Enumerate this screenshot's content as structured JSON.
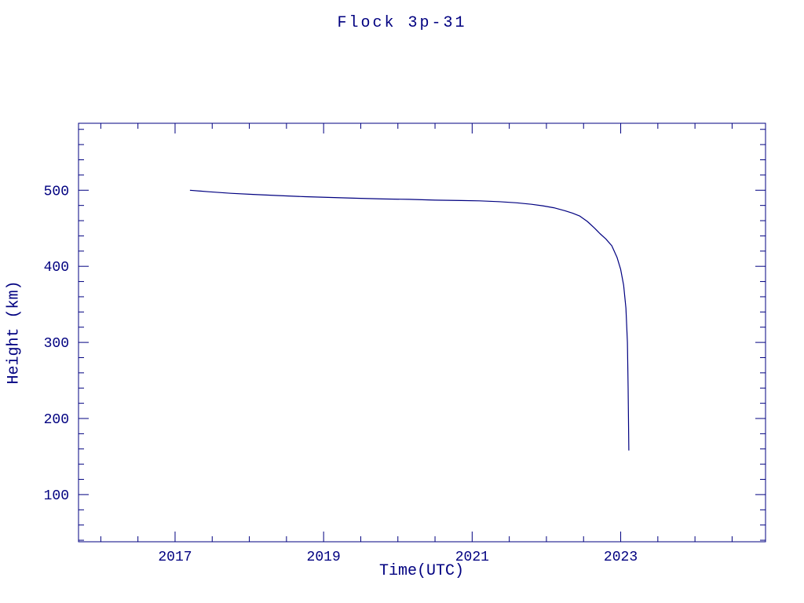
{
  "page": {
    "background": "#ffffff",
    "accent_color": "#000080"
  },
  "chart_data": {
    "type": "line",
    "title": "Flock 3p-31",
    "xlabel": "Time(UTC)",
    "ylabel": "Height (km)",
    "xlim": [
      2015.7,
      2024.95
    ],
    "ylim": [
      38,
      588
    ],
    "x_major_ticks": [
      2017,
      2019,
      2021,
      2023
    ],
    "x_tick_labels": [
      "2017",
      "2019",
      "2021",
      "2023"
    ],
    "x_minor_step": 0.5,
    "y_major_ticks": [
      100,
      200,
      300,
      400,
      500
    ],
    "y_tick_labels": [
      "100",
      "200",
      "300",
      "400",
      "500"
    ],
    "y_minor_step": 20,
    "grid": false,
    "legend": "none",
    "line_color": "#000080",
    "series": [
      {
        "name": "Flock 3p-31 orbital height",
        "x": [
          2017.2,
          2017.45,
          2017.75,
          2018.05,
          2018.4,
          2018.75,
          2019.1,
          2019.45,
          2019.8,
          2020.15,
          2020.5,
          2020.85,
          2021.1,
          2021.35,
          2021.6,
          2021.8,
          2021.95,
          2022.1,
          2022.25,
          2022.35,
          2022.45,
          2022.55,
          2022.65,
          2022.72,
          2022.8,
          2022.88,
          2022.95,
          2023.0,
          2023.04,
          2023.07,
          2023.09,
          2023.1,
          2023.11
        ],
        "y": [
          500,
          498,
          496,
          494.5,
          493,
          491.5,
          490.5,
          489.5,
          488.5,
          488,
          487,
          486.5,
          486,
          485,
          483.5,
          481.5,
          479.5,
          477,
          473,
          470,
          466,
          459,
          450,
          443,
          436,
          427,
          412,
          396,
          375,
          345,
          300,
          240,
          158
        ]
      }
    ]
  }
}
